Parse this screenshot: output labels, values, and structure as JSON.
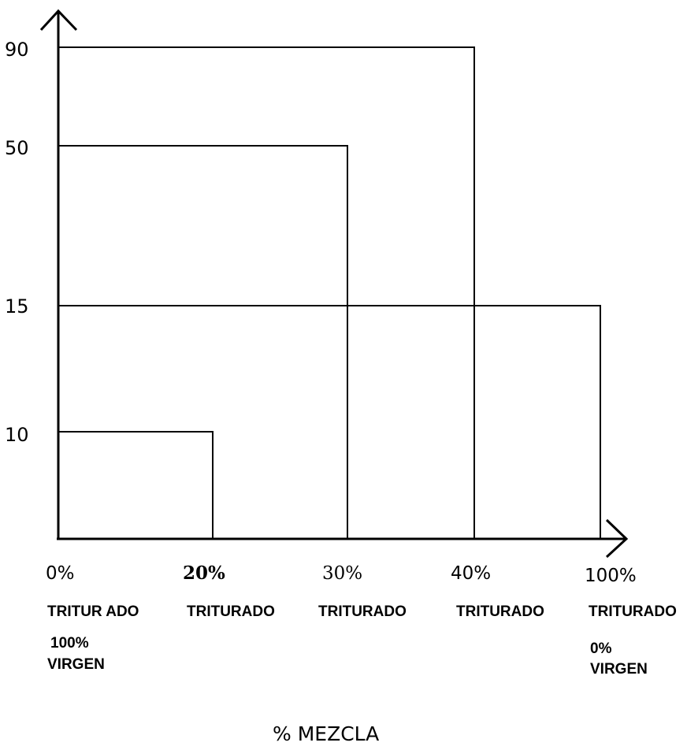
{
  "chart_data": {
    "type": "bar",
    "title": "",
    "xlabel": "% MEZCLA",
    "ylabel": "",
    "y_ticks": [
      "90",
      "50",
      "15",
      "10"
    ],
    "categories": [
      {
        "pct": "0%",
        "line1": "TRITUR ADO",
        "line2": "100%",
        "line3": "VIRGEN"
      },
      {
        "pct": "20%",
        "line1": "TRITURADO",
        "line2": "",
        "line3": ""
      },
      {
        "pct": "30%",
        "line1": "TRITURADO",
        "line2": "",
        "line3": ""
      },
      {
        "pct": "40%",
        "line1": "TRITURADO",
        "line2": "",
        "line3": ""
      },
      {
        "pct": "100%",
        "line1": "TRITURADO",
        "line2": "0%",
        "line3": "VIRGEN"
      }
    ],
    "blocks": [
      {
        "x_end": "20%",
        "value": 10
      },
      {
        "x_end": "30%",
        "value": 50
      },
      {
        "x_end": "40%",
        "value": 90
      },
      {
        "x_end": "100%",
        "value": 15
      }
    ],
    "legend": "none",
    "grid": false
  }
}
